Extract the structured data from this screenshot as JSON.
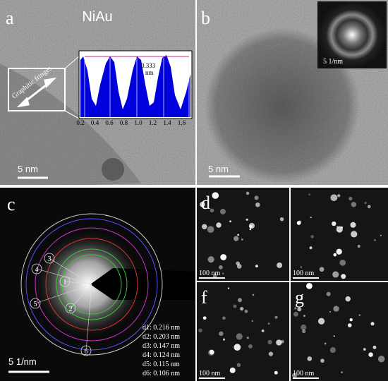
{
  "panels": {
    "a": {
      "label": "a",
      "title": "NiAu",
      "scale_bar": "5 nm",
      "annotation": "Graphitic fringes",
      "inset": {
        "spacing": "0.333",
        "spacing_unit": "nm",
        "xticks": [
          "0.2",
          "0.4",
          "0.6",
          "0.8",
          "1.0",
          "1.2",
          "1.4",
          "1.6"
        ]
      }
    },
    "b": {
      "label": "b",
      "scale_bar": "5 nm",
      "inset_scale": "5 1/nm"
    },
    "c": {
      "label": "c",
      "scale_bar": "5 1/nm",
      "rings": [
        "1",
        "2",
        "3",
        "4",
        "5",
        "6"
      ],
      "spacings": [
        "d1:  0.216 nm",
        "d2:  0.203 nm",
        "d3:  0.147 nm",
        "d4:  0.124 nm",
        "d5:  0.115 nm",
        "d6:  0.106 nm"
      ]
    },
    "d": {
      "label": "d",
      "scale_bar": "100 nm"
    },
    "e": {
      "scale_bar": "100 nm"
    },
    "f": {
      "label": "f",
      "scale_bar": "100 nm"
    },
    "g": {
      "label": "g",
      "scale_bar": "100 nm"
    }
  }
}
